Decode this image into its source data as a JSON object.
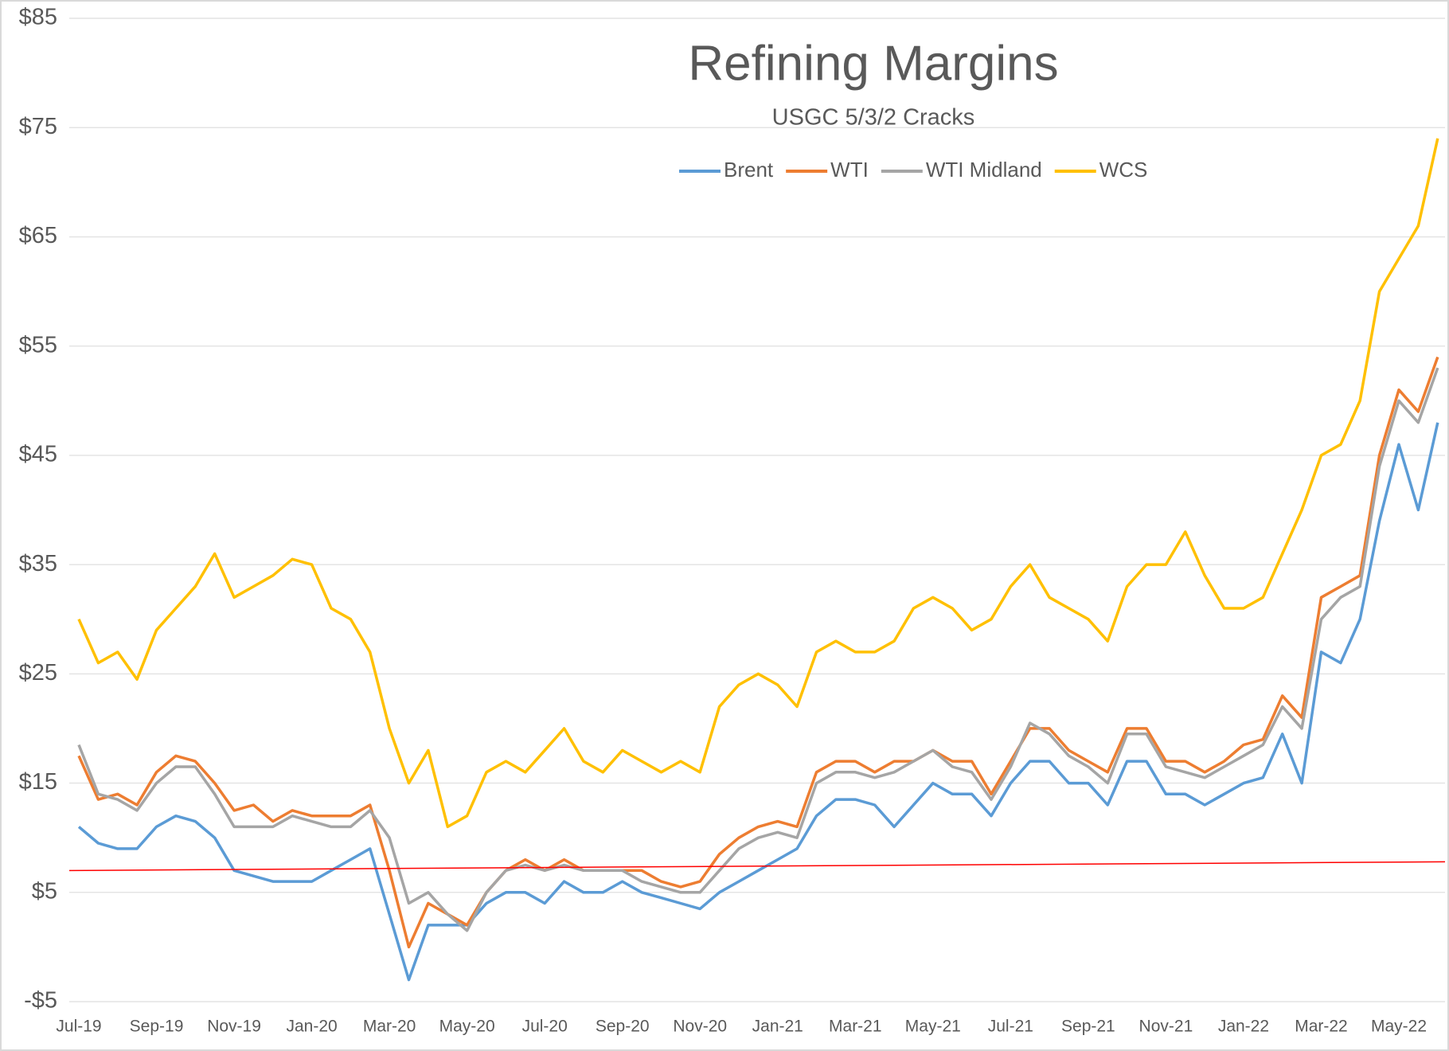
{
  "chart_data": {
    "type": "line",
    "title": "Refining Margins",
    "subtitle": "USGC 5/3/2 Cracks",
    "legend_position": "top",
    "grid": true,
    "ylim": [
      -5,
      85
    ],
    "yticks": [
      {
        "value": -5,
        "label": "-$5"
      },
      {
        "value": 5,
        "label": "$5"
      },
      {
        "value": 15,
        "label": "$15"
      },
      {
        "value": 25,
        "label": "$25"
      },
      {
        "value": 35,
        "label": "$35"
      },
      {
        "value": 45,
        "label": "$45"
      },
      {
        "value": 55,
        "label": "$55"
      },
      {
        "value": 65,
        "label": "$65"
      },
      {
        "value": 75,
        "label": "$75"
      },
      {
        "value": 85,
        "label": "$85"
      }
    ],
    "categories": [
      "Jul-19",
      null,
      null,
      null,
      "Sep-19",
      null,
      null,
      null,
      "Nov-19",
      null,
      null,
      null,
      "Jan-20",
      null,
      null,
      null,
      "Mar-20",
      null,
      null,
      null,
      "May-20",
      null,
      null,
      null,
      "Jul-20",
      null,
      null,
      null,
      "Sep-20",
      null,
      null,
      null,
      "Nov-20",
      null,
      null,
      null,
      "Jan-21",
      null,
      null,
      null,
      "Mar-21",
      null,
      null,
      null,
      "May-21",
      null,
      null,
      null,
      "Jul-21",
      null,
      null,
      null,
      "Sep-21",
      null,
      null,
      null,
      "Nov-21",
      null,
      null,
      null,
      "Jan-22",
      null,
      null,
      null,
      "Mar-22",
      null,
      null,
      null,
      "May-22",
      null,
      null
    ],
    "series": [
      {
        "name": "Brent",
        "color": "#5b9bd5",
        "values": [
          11,
          9.5,
          9,
          9,
          11,
          12,
          11.5,
          10,
          7,
          6.5,
          6,
          6,
          6,
          7,
          8,
          9,
          3,
          -3,
          2,
          2,
          2,
          4,
          5,
          5,
          4,
          6,
          5,
          5,
          6,
          5,
          4.5,
          4,
          3.5,
          5,
          6,
          7,
          8,
          9,
          12,
          13.5,
          13.5,
          13,
          11,
          13,
          15,
          14,
          14,
          12,
          15,
          17,
          17,
          15,
          15,
          13,
          17,
          17,
          14,
          14,
          13,
          14,
          15,
          15.5,
          19.5,
          15,
          27,
          26,
          30,
          39,
          46,
          40,
          48
        ]
      },
      {
        "name": "WTI",
        "color": "#ed7d31",
        "values": [
          17.5,
          13.5,
          14,
          13,
          16,
          17.5,
          17,
          15,
          12.5,
          13,
          11.5,
          12.5,
          12,
          12,
          12,
          13,
          7,
          0,
          4,
          3,
          2,
          5,
          7,
          8,
          7,
          8,
          7,
          7,
          7,
          7,
          6,
          5.5,
          6,
          8.5,
          10,
          11,
          11.5,
          11,
          16,
          17,
          17,
          16,
          17,
          17,
          18,
          17,
          17,
          14,
          17,
          20,
          20,
          18,
          17,
          16,
          20,
          20,
          17,
          17,
          16,
          17,
          18.5,
          19,
          23,
          21,
          32,
          33,
          34,
          45,
          51,
          49,
          54
        ]
      },
      {
        "name": "WTI Midland",
        "color": "#a5a5a5",
        "values": [
          18.5,
          14,
          13.5,
          12.5,
          15,
          16.5,
          16.5,
          14,
          11,
          11,
          11,
          12,
          11.5,
          11,
          11,
          12.5,
          10,
          4,
          5,
          3,
          1.5,
          5,
          7,
          7.5,
          7,
          7.5,
          7,
          7,
          7,
          6,
          5.5,
          5,
          5,
          7,
          9,
          10,
          10.5,
          10,
          15,
          16,
          16,
          15.5,
          16,
          17,
          18,
          16.5,
          16,
          13.5,
          16.5,
          20.5,
          19.5,
          17.5,
          16.5,
          15,
          19.5,
          19.5,
          16.5,
          16,
          15.5,
          16.5,
          17.5,
          18.5,
          22,
          20,
          30,
          32,
          33,
          44,
          50,
          48,
          53
        ]
      },
      {
        "name": "WCS",
        "color": "#ffc000",
        "values": [
          30,
          26,
          27,
          24.5,
          29,
          31,
          33,
          36,
          32,
          33,
          34,
          35.5,
          35,
          31,
          30,
          27,
          20,
          15,
          18,
          11,
          12,
          16,
          17,
          16,
          18,
          20,
          17,
          16,
          18,
          17,
          16,
          17,
          16,
          22,
          24,
          25,
          24,
          22,
          27,
          28,
          27,
          27,
          28,
          31,
          32,
          31,
          29,
          30,
          33,
          35,
          32,
          31,
          30,
          28,
          33,
          35,
          35,
          38,
          34,
          31,
          31,
          32,
          36,
          40,
          45,
          46,
          50,
          60,
          63,
          66,
          74
        ]
      }
    ],
    "trend_line": {
      "color": "#ff0000",
      "start": 7,
      "end": 7.8
    }
  }
}
